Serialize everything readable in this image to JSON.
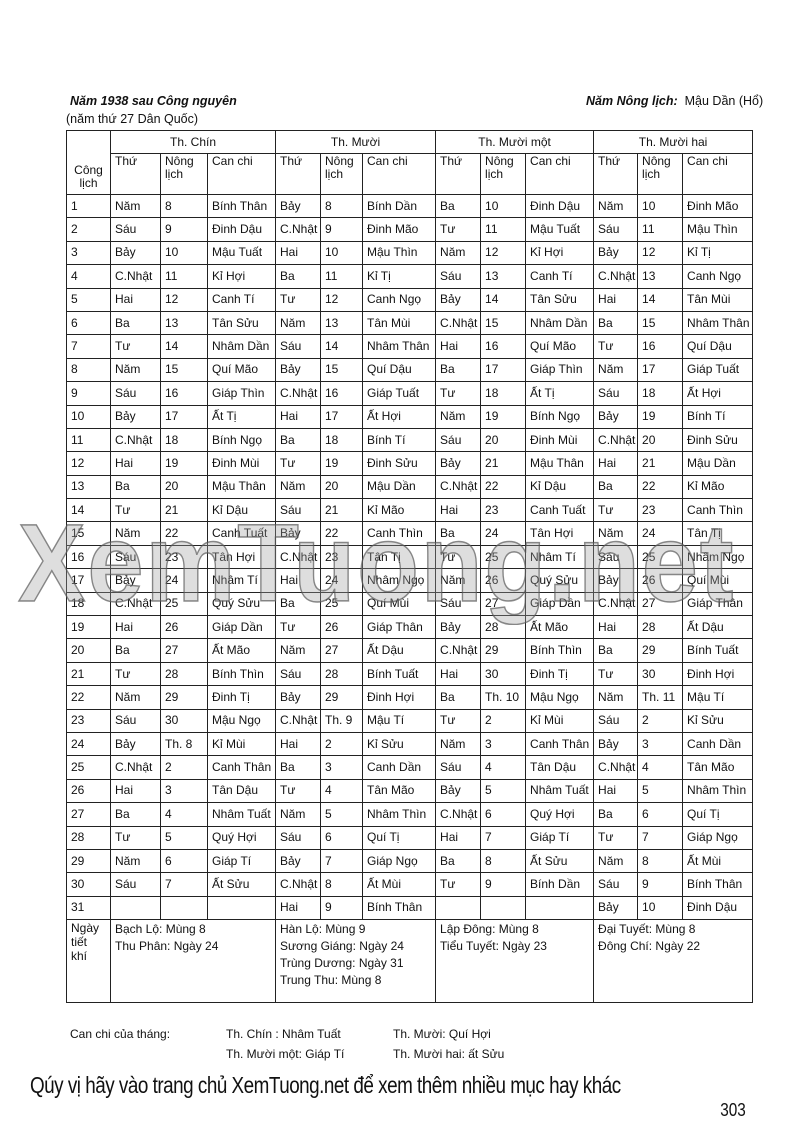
{
  "header": {
    "year_title": "Năm 1938 sau Công nguyên",
    "year_sub": "(năm thứ  27 Dân Quốc)",
    "lunar_label": "Năm Nông lịch:",
    "lunar_value": "Mậu Dần (Hổ)"
  },
  "table": {
    "first_col": "Công lịch",
    "months": [
      "Th. Chín",
      "Th. Mười",
      "Th. Mười một",
      "Th. Mười hai"
    ],
    "sub_headers": [
      "Thứ",
      "Nông lịch",
      "Can chi"
    ],
    "rows": [
      [
        "1",
        "Năm",
        "8",
        "Bính Thân",
        "Bảy",
        "8",
        "Bính Dần",
        "Ba",
        "10",
        "Đinh Dậu",
        "Năm",
        "10",
        "Đinh Mão"
      ],
      [
        "2",
        "Sáu",
        "9",
        "Đinh Dậu",
        "C.Nhật",
        "9",
        "Đinh Mão",
        "Tư",
        "11",
        "Mậu Tuất",
        "Sáu",
        "11",
        "Mậu Thìn"
      ],
      [
        "3",
        "Bảy",
        "10",
        "Mậu Tuất",
        "Hai",
        "10",
        "Mậu Thìn",
        "Năm",
        "12",
        "Kỉ Hợi",
        "Bảy",
        "12",
        "Kỉ Tị"
      ],
      [
        "4",
        "C.Nhật",
        "11",
        "Kỉ Hợi",
        "Ba",
        "11",
        "Kỉ Tị",
        "Sáu",
        "13",
        "Canh Tí",
        "C.Nhật",
        "13",
        "Canh Ngọ"
      ],
      [
        "5",
        "Hai",
        "12",
        "Canh Tí",
        "Tư",
        "12",
        "Canh Ngọ",
        "Bảy",
        "14",
        "Tân Sửu",
        "Hai",
        "14",
        "Tân Mùi"
      ],
      [
        "6",
        "Ba",
        "13",
        "Tân Sửu",
        "Năm",
        "13",
        "Tân Mùi",
        "C.Nhật",
        "15",
        "Nhâm Dần",
        "Ba",
        "15",
        "Nhâm Thân"
      ],
      [
        "7",
        "Tư",
        "14",
        "Nhâm Dần",
        "Sáu",
        "14",
        "Nhâm Thân",
        "Hai",
        "16",
        "Quí Mão",
        "Tư",
        "16",
        "Quí Dậu"
      ],
      [
        "8",
        "Năm",
        "15",
        "Quí Mão",
        "Bảy",
        "15",
        "Quí Dậu",
        "Ba",
        "17",
        "Giáp Thìn",
        "Năm",
        "17",
        "Giáp Tuất"
      ],
      [
        "9",
        "Sáu",
        "16",
        "Giáp Thìn",
        "C.Nhật",
        "16",
        "Giáp Tuất",
        "Tư",
        "18",
        "Ất Tị",
        "Sáu",
        "18",
        "Ất Hợi"
      ],
      [
        "10",
        "Bảy",
        "17",
        "Ất Tị",
        "Hai",
        "17",
        "Ất Hợi",
        "Năm",
        "19",
        "Bính Ngọ",
        "Bảy",
        "19",
        "Bính Tí"
      ],
      [
        "11",
        "C.Nhật",
        "18",
        "Bính Ngọ",
        "Ba",
        "18",
        "Bính Tí",
        "Sáu",
        "20",
        "Đinh Mùi",
        "C.Nhật",
        "20",
        "Đinh Sửu"
      ],
      [
        "12",
        "Hai",
        "19",
        "Đinh Mùi",
        "Tư",
        "19",
        "Đinh Sửu",
        "Bảy",
        "21",
        "Mậu Thân",
        "Hai",
        "21",
        "Mậu Dần"
      ],
      [
        "13",
        "Ba",
        "20",
        "Mậu Thân",
        "Năm",
        "20",
        "Mậu Dần",
        "C.Nhật",
        "22",
        "Kỉ Dậu",
        "Ba",
        "22",
        "Kỉ Mão"
      ],
      [
        "14",
        "Tư",
        "21",
        "Kỉ Dậu",
        "Sáu",
        "21",
        "Kỉ Mão",
        "Hai",
        "23",
        "Canh Tuất",
        "Tư",
        "23",
        "Canh Thìn"
      ],
      [
        "15",
        "Năm",
        "22",
        "Canh Tuất",
        "Bảy",
        "22",
        "Canh Thìn",
        "Ba",
        "24",
        "Tân Hợi",
        "Năm",
        "24",
        "Tân Tị"
      ],
      [
        "16",
        "Sáu",
        "23",
        "Tân Hợi",
        "C.Nhật",
        "23",
        "Tân Tị",
        "Tư",
        "25",
        "Nhâm Tí",
        "Sáu",
        "25",
        "Nhâm Ngọ"
      ],
      [
        "17",
        "Bảy",
        "24",
        "Nhâm Tí",
        "Hai",
        "24",
        "Nhâm Ngọ",
        "Năm",
        "26",
        "Quý Sửu",
        "Bảy",
        "26",
        "Quí Mùi"
      ],
      [
        "18",
        "C.Nhật",
        "25",
        "Quý Sửu",
        "Ba",
        "25",
        "Quí Mùi",
        "Sáu",
        "27",
        "Giáp Dần",
        "C.Nhật",
        "27",
        "Giáp Thân"
      ],
      [
        "19",
        "Hai",
        "26",
        "Giáp Dần",
        "Tư",
        "26",
        "Giáp Thân",
        "Bảy",
        "28",
        "Ất Mão",
        "Hai",
        "28",
        "Ất Dậu"
      ],
      [
        "20",
        "Ba",
        "27",
        "Ất Mão",
        "Năm",
        "27",
        "Ất Dậu",
        "C.Nhật",
        "29",
        "Bính Thìn",
        "Ba",
        "29",
        "Bính Tuất"
      ],
      [
        "21",
        "Tư",
        "28",
        "Bính Thìn",
        "Sáu",
        "28",
        "Bính Tuất",
        "Hai",
        "30",
        "Đinh Tị",
        "Tư",
        "30",
        "Đinh Hợi"
      ],
      [
        "22",
        "Năm",
        "29",
        "Đinh Tị",
        "Bảy",
        "29",
        "Đinh Hợi",
        "Ba",
        "Th. 10",
        "Mậu Ngọ",
        "Năm",
        "Th. 11",
        "Mậu Tí"
      ],
      [
        "23",
        "Sáu",
        "30",
        "Mậu Ngọ",
        "C.Nhật",
        "Th. 9",
        "Mậu Tí",
        "Tư",
        "2",
        "Kỉ Mùi",
        "Sáu",
        "2",
        "Kỉ Sửu"
      ],
      [
        "24",
        "Bảy",
        "Th. 8",
        "Kỉ Mùi",
        "Hai",
        "2",
        "Kỉ Sửu",
        "Năm",
        "3",
        "Canh Thân",
        "Bảy",
        "3",
        "Canh Dần"
      ],
      [
        "25",
        "C.Nhật",
        "2",
        "Canh Thân",
        "Ba",
        "3",
        "Canh Dần",
        "Sáu",
        "4",
        "Tân Dậu",
        "C.Nhật",
        "4",
        "Tân Mão"
      ],
      [
        "26",
        "Hai",
        "3",
        "Tân Dậu",
        "Tư",
        "4",
        "Tân Mão",
        "Bảy",
        "5",
        "Nhâm Tuất",
        "Hai",
        "5",
        "Nhâm Thìn"
      ],
      [
        "27",
        "Ba",
        "4",
        "Nhâm Tuất",
        "Năm",
        "5",
        "Nhâm Thìn",
        "C.Nhật",
        "6",
        "Quý Hợi",
        "Ba",
        "6",
        "Quí Tị"
      ],
      [
        "28",
        "Tư",
        "5",
        "Quý Hợi",
        "Sáu",
        "6",
        "Quí Tị",
        "Hai",
        "7",
        "Giáp Tí",
        "Tư",
        "7",
        "Giáp Ngọ"
      ],
      [
        "29",
        "Năm",
        "6",
        "Giáp Tí",
        "Bảy",
        "7",
        "Giáp Ngọ",
        "Ba",
        "8",
        "Ất Sửu",
        "Năm",
        "8",
        "Ất Mùi"
      ],
      [
        "30",
        "Sáu",
        "7",
        "Ất Sửu",
        "C.Nhật",
        "8",
        "Ất Mùi",
        "Tư",
        "9",
        "Bính Dần",
        "Sáu",
        "9",
        "Bính Thân"
      ],
      [
        "31",
        "",
        "",
        "",
        "Hai",
        "9",
        "Bính Thân",
        "",
        "",
        "",
        "Bảy",
        "10",
        "Đinh Dậu"
      ]
    ],
    "solar_terms_label": "Ngày tiết khí",
    "solar_terms": [
      [
        "Bạch Lộ: Mùng 8",
        "Thu Phân: Ngày 24"
      ],
      [
        "Hàn Lộ: Mùng 9",
        "Sương Giáng: Ngày 24",
        "Trùng Dương: Ngày 31",
        "Trung Thu: Mùng 8"
      ],
      [
        "Lập Đông: Mùng 8",
        "Tiểu Tuyết: Ngày 23"
      ],
      [
        "Đại Tuyết: Mùng 8",
        "Đông Chí: Ngày 22"
      ]
    ]
  },
  "footer": {
    "label": "Can chi của tháng:",
    "m9": "Th. Chín : Nhâm Tuất",
    "m10": "Th. Mười: Quí Hợi",
    "m11": "Th. Mười một: Giáp Tí",
    "m12": "Th. Mười hai: ất Sửu"
  },
  "banner": "Qúy vị hãy vào trang chủ XemTuong.net để xem thêm nhiều mục hay khác",
  "page_number": "303",
  "watermark": "XemTuong.net"
}
